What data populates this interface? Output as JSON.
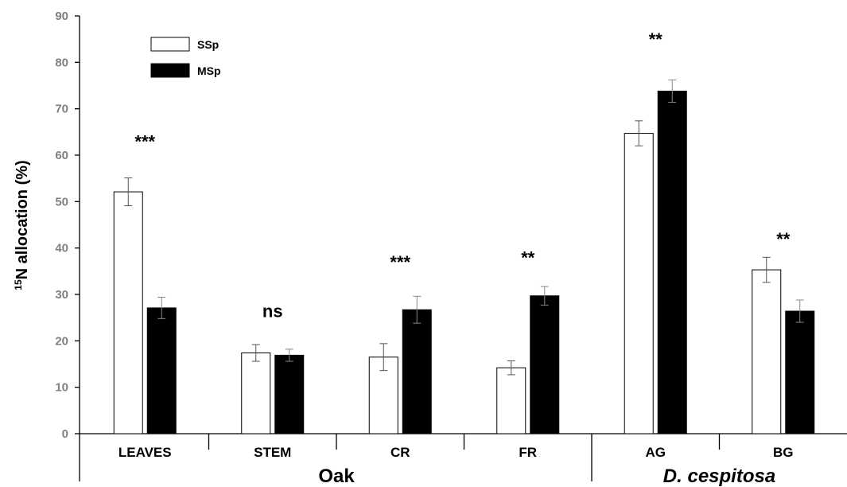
{
  "chart_data": {
    "type": "bar",
    "ylabel_super": "15",
    "ylabel_main": "N allocation (%)",
    "ylim": [
      0,
      90
    ],
    "yticks": [
      "0",
      "10",
      "20",
      "30",
      "40",
      "50",
      "60",
      "70",
      "80",
      "90"
    ],
    "categories": [
      "LEAVES",
      "STEM",
      "CR",
      "FR",
      "AG",
      "BG"
    ],
    "groups": [
      {
        "label": "Oak",
        "italic": false,
        "span": [
          0,
          3
        ]
      },
      {
        "label": "D. cespitosa",
        "italic": true,
        "span": [
          4,
          5
        ]
      }
    ],
    "series": [
      {
        "name": "SSp",
        "fill": "#ffffff",
        "values": [
          52.1,
          17.4,
          16.5,
          14.2,
          64.7,
          35.3
        ],
        "errors": [
          3.0,
          1.8,
          2.9,
          1.5,
          2.7,
          2.7
        ]
      },
      {
        "name": "MSp",
        "fill": "#000000",
        "values": [
          27.1,
          16.9,
          26.7,
          29.7,
          73.8,
          26.4
        ],
        "errors": [
          2.3,
          1.3,
          2.9,
          2.0,
          2.4,
          2.4
        ]
      }
    ],
    "significance": [
      {
        "text": "***",
        "y": 63
      },
      {
        "text": "ns",
        "y": 26.5
      },
      {
        "text": "***",
        "y": 37
      },
      {
        "text": "**",
        "y": 38
      },
      {
        "text": "**",
        "y": 85
      },
      {
        "text": "**",
        "y": 42
      }
    ],
    "legend_placement": "top-left",
    "grid": false
  }
}
